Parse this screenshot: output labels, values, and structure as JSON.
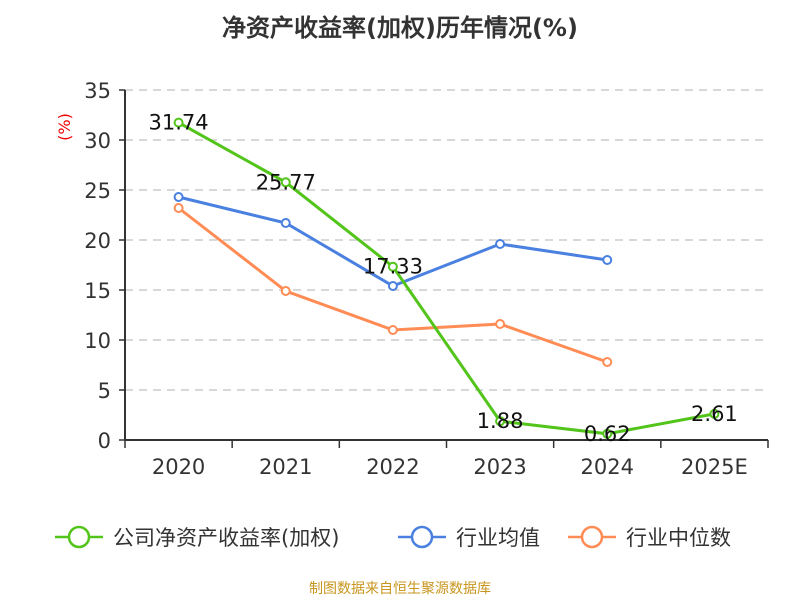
{
  "chart_data": {
    "type": "line",
    "title": "净资产收益率(加权)历年情况(%)",
    "ylabel": "(%)",
    "categories": [
      "2020",
      "2021",
      "2022",
      "2023",
      "2024",
      "2025E"
    ],
    "ylim": [
      0,
      35
    ],
    "yticks": [
      0,
      5,
      10,
      15,
      20,
      25,
      30,
      35
    ],
    "grid": true,
    "legend_position": "bottom",
    "series": [
      {
        "name": "公司净资产收益率(加权)",
        "color": "#52c41a",
        "values": [
          31.74,
          25.77,
          17.33,
          1.88,
          0.62,
          2.61
        ],
        "labels": [
          "31.74",
          "25.77",
          "17.33",
          "1.88",
          "0.62",
          "2.61"
        ]
      },
      {
        "name": "行业均值",
        "color": "#4a80e0",
        "values": [
          24.3,
          21.7,
          15.4,
          19.6,
          18.0,
          null
        ]
      },
      {
        "name": "行业中位数",
        "color": "#ff8c55",
        "values": [
          23.2,
          14.9,
          11.0,
          11.6,
          7.8,
          null
        ]
      }
    ]
  },
  "source": "制图数据来自恒生聚源数据库"
}
